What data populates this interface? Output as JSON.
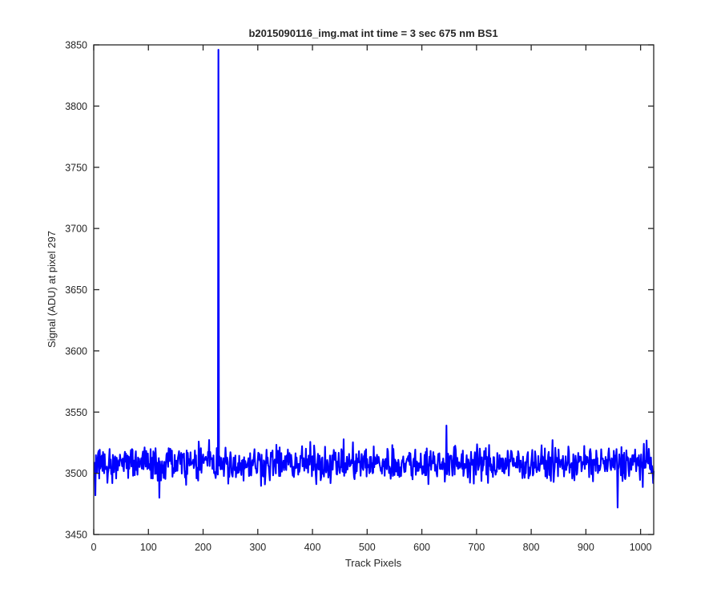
{
  "chart_data": {
    "type": "line",
    "title": "b2015090116_img.mat int time = 3 sec  675 nm BS1",
    "xlabel": "Track Pixels",
    "ylabel": "Signal (ADU) at pixel 297",
    "xlim": [
      0,
      1024
    ],
    "ylim": [
      3450,
      3850
    ],
    "xticks": [
      0,
      100,
      200,
      300,
      400,
      500,
      600,
      700,
      800,
      900,
      1000
    ],
    "yticks": [
      3450,
      3500,
      3550,
      3600,
      3650,
      3700,
      3750,
      3800,
      3850
    ],
    "grid": false,
    "line_color": "#0000ff",
    "series": [
      {
        "x_start": 1,
        "x_step": 1,
        "baseline": 3508,
        "noise_amplitude": 10,
        "spike": {
          "x": 228,
          "y": 3846
        },
        "notable_points": [
          {
            "x": 3,
            "y": 3482
          },
          {
            "x": 120,
            "y": 3480
          },
          {
            "x": 645,
            "y": 3539
          },
          {
            "x": 958,
            "y": 3472
          }
        ]
      }
    ]
  }
}
